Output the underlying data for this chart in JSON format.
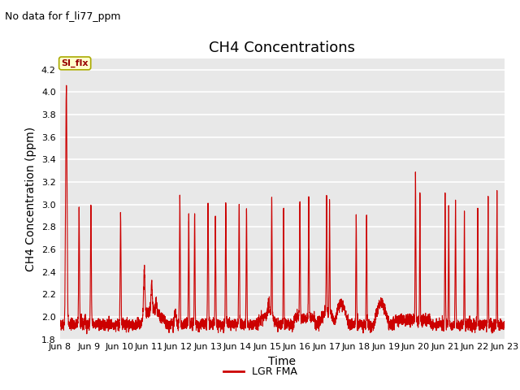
{
  "title": "CH4 Concentrations",
  "xlabel": "Time",
  "ylabel": "CH4 Concentration (ppm)",
  "no_data_text": "No data for f_li77_ppm",
  "legend_label": "LGR FMA",
  "legend_line_color": "#cc0000",
  "ylim": [
    1.8,
    4.3
  ],
  "yticks": [
    1.8,
    2.0,
    2.2,
    2.4,
    2.6,
    2.8,
    3.0,
    3.2,
    3.4,
    3.6,
    3.8,
    4.0,
    4.2
  ],
  "xlim_start": 8,
  "xlim_end": 23,
  "xtick_positions": [
    8,
    9,
    10,
    11,
    12,
    13,
    14,
    15,
    16,
    17,
    18,
    19,
    20,
    21,
    22,
    23
  ],
  "xtick_labels": [
    "Jun 8",
    "Jun 9",
    "Jun 10",
    "Jun 11",
    "Jun 12",
    "Jun 13",
    "Jun 14",
    "Jun 15",
    "Jun 16",
    "Jun 17",
    "Jun 18",
    "Jun 19",
    "Jun 20",
    "Jun 21",
    "Jun 22",
    "Jun 23"
  ],
  "background_color": "#e8e8e8",
  "grid_color": "#ffffff",
  "line_color": "#cc0000",
  "annotation_text": "SI_flx",
  "title_fontsize": 13,
  "axis_label_fontsize": 10,
  "tick_fontsize": 8,
  "no_data_fontsize": 9
}
